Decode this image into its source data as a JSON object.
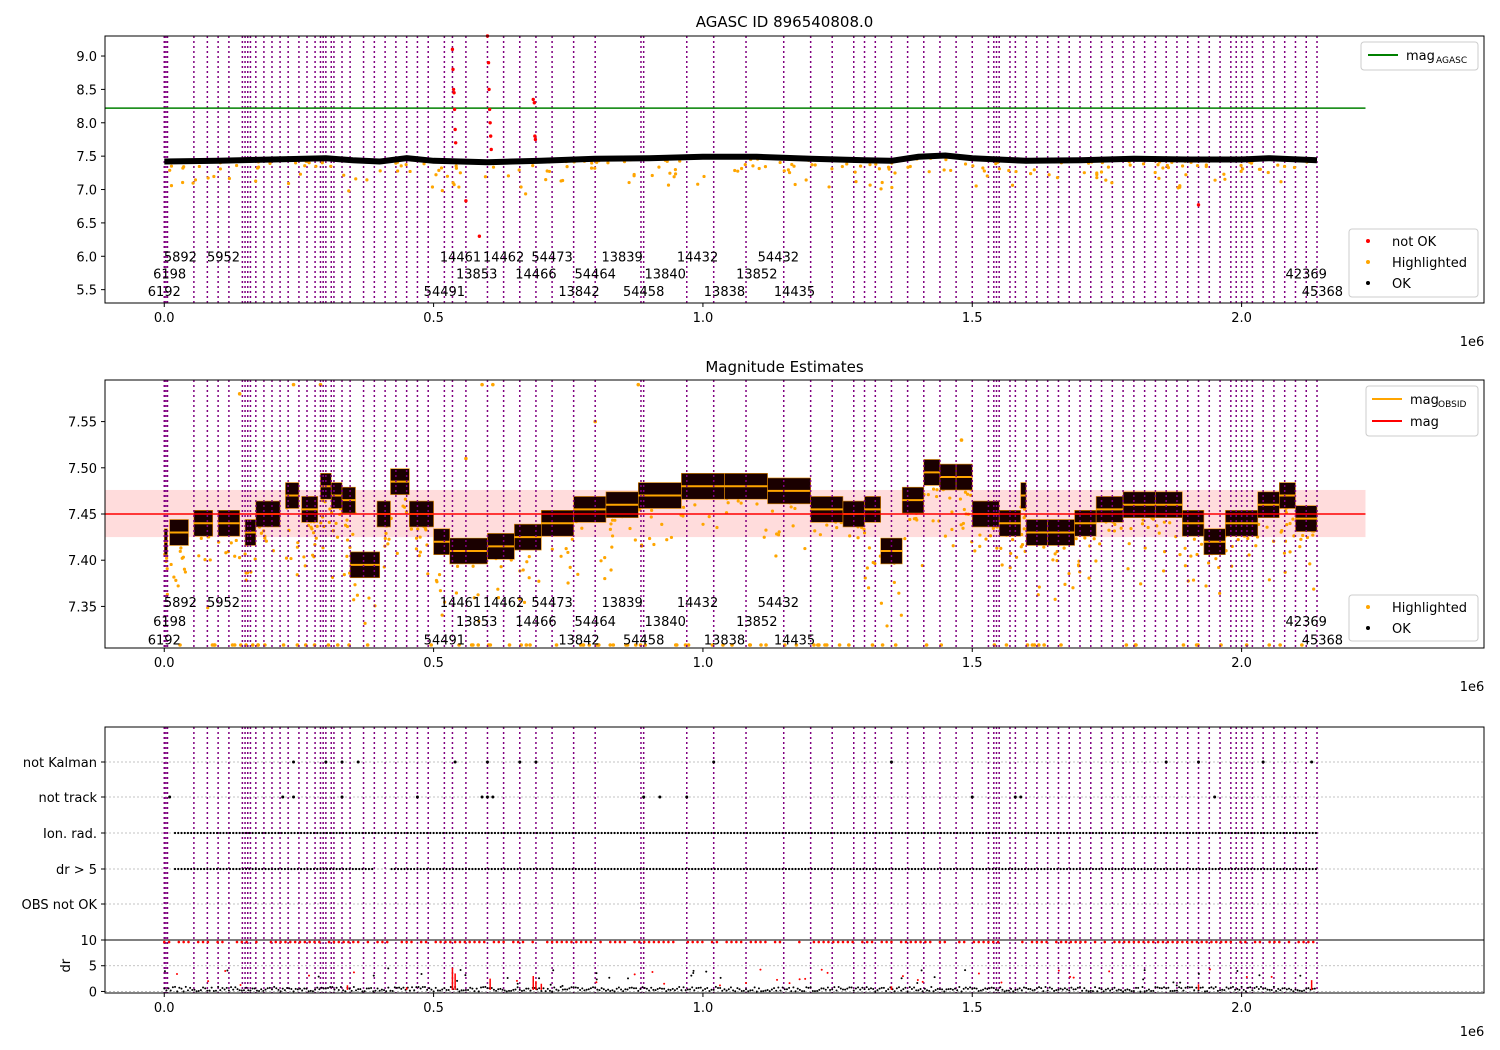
{
  "figure": {
    "offset_label": "1e6"
  },
  "chart_data": [
    {
      "type": "scatter",
      "title": "AGASC ID 896540808.0",
      "xlim": [
        -0.11,
        2.45
      ],
      "ylim": [
        5.3,
        9.3
      ],
      "xticks": [
        0.0,
        0.5,
        1.0,
        1.5,
        2.0
      ],
      "xtick_labels": [
        "0.0",
        "0.5",
        "1.0",
        "1.5",
        "2.0"
      ],
      "yticks": [
        5.5,
        6.0,
        6.5,
        7.0,
        7.5,
        8.0,
        8.5,
        9.0
      ],
      "ytick_labels": [
        "5.5",
        "6.0",
        "6.5",
        "7.0",
        "7.5",
        "8.0",
        "8.5",
        "9.0"
      ],
      "x_offset_label": "1e6",
      "lines": [
        {
          "name": "mag_AGASC",
          "legend_main": "mag",
          "legend_sub": "AGASC",
          "color": "#008000",
          "y": 8.22,
          "x_range": [
            0.0,
            2.23
          ]
        }
      ],
      "series": [
        {
          "name": "not OK",
          "color": "#ff0000"
        },
        {
          "name": "Highlighted",
          "color": "#ffa500"
        },
        {
          "name": "OK",
          "color": "#000000"
        }
      ],
      "ok_baseline": [
        [
          0.0,
          7.42
        ],
        [
          0.1,
          7.43
        ],
        [
          0.2,
          7.45
        ],
        [
          0.3,
          7.47
        ],
        [
          0.35,
          7.44
        ],
        [
          0.4,
          7.42
        ],
        [
          0.45,
          7.47
        ],
        [
          0.5,
          7.43
        ],
        [
          0.6,
          7.41
        ],
        [
          0.7,
          7.43
        ],
        [
          0.8,
          7.46
        ],
        [
          0.9,
          7.47
        ],
        [
          1.0,
          7.49
        ],
        [
          1.1,
          7.49
        ],
        [
          1.2,
          7.46
        ],
        [
          1.3,
          7.44
        ],
        [
          1.35,
          7.43
        ],
        [
          1.4,
          7.49
        ],
        [
          1.45,
          7.51
        ],
        [
          1.5,
          7.47
        ],
        [
          1.6,
          7.43
        ],
        [
          1.7,
          7.44
        ],
        [
          1.8,
          7.46
        ],
        [
          1.9,
          7.45
        ],
        [
          2.0,
          7.45
        ],
        [
          2.05,
          7.47
        ],
        [
          2.14,
          7.44
        ]
      ],
      "not_ok_points": [
        [
          0.535,
          9.1
        ],
        [
          0.536,
          8.8
        ],
        [
          0.537,
          8.5
        ],
        [
          0.538,
          8.45
        ],
        [
          0.539,
          8.2
        ],
        [
          0.54,
          7.9
        ],
        [
          0.541,
          7.7
        ],
        [
          0.6,
          9.3
        ],
        [
          0.602,
          8.9
        ],
        [
          0.603,
          8.5
        ],
        [
          0.604,
          8.2
        ],
        [
          0.605,
          8.0
        ],
        [
          0.606,
          7.8
        ],
        [
          0.607,
          7.6
        ],
        [
          0.685,
          8.35
        ],
        [
          0.687,
          8.3
        ],
        [
          0.688,
          7.8
        ],
        [
          0.689,
          7.75
        ],
        [
          0.585,
          6.3
        ],
        [
          0.56,
          6.83
        ],
        [
          1.92,
          6.77
        ]
      ],
      "legend_entries": [
        "not OK",
        "Highlighted",
        "OK"
      ],
      "text_labels": [
        {
          "t": "5892",
          "x": 0.03,
          "y": 6.0
        },
        {
          "t": "5952",
          "x": 0.11,
          "y": 6.0
        },
        {
          "t": "14461",
          "x": 0.55,
          "y": 6.0
        },
        {
          "t": "14462",
          "x": 0.63,
          "y": 6.0
        },
        {
          "t": "54473",
          "x": 0.72,
          "y": 6.0
        },
        {
          "t": "13839",
          "x": 0.85,
          "y": 6.0
        },
        {
          "t": "14432",
          "x": 0.99,
          "y": 6.0
        },
        {
          "t": "54432",
          "x": 1.14,
          "y": 6.0
        },
        {
          "t": "6198",
          "x": 0.01,
          "y": 5.74
        },
        {
          "t": "13853",
          "x": 0.58,
          "y": 5.74
        },
        {
          "t": "14466",
          "x": 0.69,
          "y": 5.74
        },
        {
          "t": "54464",
          "x": 0.8,
          "y": 5.74
        },
        {
          "t": "13840",
          "x": 0.93,
          "y": 5.74
        },
        {
          "t": "13852",
          "x": 1.1,
          "y": 5.74
        },
        {
          "t": "42369",
          "x": 2.12,
          "y": 5.74
        },
        {
          "t": "6192",
          "x": 0.0,
          "y": 5.48
        },
        {
          "t": "54491",
          "x": 0.52,
          "y": 5.48
        },
        {
          "t": "13842",
          "x": 0.77,
          "y": 5.48
        },
        {
          "t": "54458",
          "x": 0.89,
          "y": 5.48
        },
        {
          "t": "13838",
          "x": 1.04,
          "y": 5.48
        },
        {
          "t": "14435",
          "x": 1.17,
          "y": 5.48
        },
        {
          "t": "45368",
          "x": 2.15,
          "y": 5.48
        }
      ]
    },
    {
      "type": "scatter",
      "title": "Magnitude Estimates",
      "xlim": [
        -0.11,
        2.45
      ],
      "ylim": [
        7.305,
        7.595
      ],
      "xticks": [
        0.0,
        0.5,
        1.0,
        1.5,
        2.0
      ],
      "xtick_labels": [
        "0.0",
        "0.5",
        "1.0",
        "1.5",
        "2.0"
      ],
      "yticks": [
        7.35,
        7.4,
        7.45,
        7.5,
        7.55
      ],
      "ytick_labels": [
        "7.35",
        "7.40",
        "7.45",
        "7.50",
        "7.55"
      ],
      "x_offset_label": "1e6",
      "lines": [
        {
          "name": "mag_OBSID",
          "legend_main": "mag",
          "legend_sub": "OBSID",
          "color": "#ffa500"
        },
        {
          "name": "mag",
          "legend_main": "mag",
          "legend_sub": "",
          "color": "#ff0000",
          "y": 7.45,
          "x_range": [
            -0.11,
            2.23
          ]
        }
      ],
      "band": {
        "y_low": 7.425,
        "y_high": 7.476,
        "x_range": [
          -0.11,
          2.23
        ],
        "color": "#ffc0c0"
      },
      "series": [
        {
          "name": "Highlighted",
          "color": "#ffa500"
        },
        {
          "name": "OK",
          "color": "#000000"
        }
      ],
      "observations": [
        [
          0.0,
          0.006,
          7.42
        ],
        [
          0.01,
          0.045,
          7.43
        ],
        [
          0.055,
          0.09,
          7.44
        ],
        [
          0.1,
          0.14,
          7.44
        ],
        [
          0.15,
          0.17,
          7.43
        ],
        [
          0.17,
          0.215,
          7.45
        ],
        [
          0.225,
          0.25,
          7.47
        ],
        [
          0.255,
          0.285,
          7.455
        ],
        [
          0.29,
          0.31,
          7.48
        ],
        [
          0.31,
          0.33,
          7.47
        ],
        [
          0.33,
          0.355,
          7.465
        ],
        [
          0.345,
          0.4,
          7.395
        ],
        [
          0.395,
          0.42,
          7.45
        ],
        [
          0.42,
          0.455,
          7.485
        ],
        [
          0.455,
          0.5,
          7.45
        ],
        [
          0.5,
          0.53,
          7.42
        ],
        [
          0.53,
          0.6,
          7.41
        ],
        [
          0.6,
          0.65,
          7.415
        ],
        [
          0.65,
          0.7,
          7.425
        ],
        [
          0.7,
          0.76,
          7.44
        ],
        [
          0.76,
          0.82,
          7.455
        ],
        [
          0.82,
          0.88,
          7.46
        ],
        [
          0.88,
          0.96,
          7.47
        ],
        [
          0.96,
          1.04,
          7.48
        ],
        [
          1.04,
          1.12,
          7.48
        ],
        [
          1.12,
          1.2,
          7.475
        ],
        [
          1.2,
          1.26,
          7.455
        ],
        [
          1.26,
          1.3,
          7.45
        ],
        [
          1.3,
          1.33,
          7.455
        ],
        [
          1.33,
          1.37,
          7.41
        ],
        [
          1.37,
          1.41,
          7.465
        ],
        [
          1.41,
          1.44,
          7.495
        ],
        [
          1.44,
          1.47,
          7.49
        ],
        [
          1.47,
          1.5,
          7.49
        ],
        [
          1.5,
          1.55,
          7.45
        ],
        [
          1.55,
          1.59,
          7.44
        ],
        [
          1.59,
          1.6,
          7.47
        ],
        [
          1.6,
          1.64,
          7.43
        ],
        [
          1.64,
          1.69,
          7.43
        ],
        [
          1.69,
          1.73,
          7.44
        ],
        [
          1.73,
          1.78,
          7.455
        ],
        [
          1.78,
          1.84,
          7.46
        ],
        [
          1.84,
          1.89,
          7.46
        ],
        [
          1.89,
          1.93,
          7.44
        ],
        [
          1.93,
          1.97,
          7.42
        ],
        [
          1.97,
          2.03,
          7.44
        ],
        [
          2.03,
          2.07,
          7.46
        ],
        [
          2.07,
          2.1,
          7.47
        ],
        [
          2.1,
          2.14,
          7.445
        ]
      ],
      "highlighted_samples": [
        [
          0.14,
          7.58
        ],
        [
          0.24,
          7.59
        ],
        [
          0.29,
          7.59
        ],
        [
          0.56,
          7.51
        ],
        [
          0.59,
          7.59
        ],
        [
          0.61,
          7.59
        ],
        [
          0.8,
          7.55
        ],
        [
          0.88,
          7.59
        ],
        [
          1.48,
          7.53
        ]
      ],
      "legend_entries": [
        "mag_OBSID",
        "mag",
        "Highlighted",
        "OK"
      ],
      "text_labels": [
        {
          "t": "5892",
          "x": 0.03,
          "y": 7.355
        },
        {
          "t": "5952",
          "x": 0.11,
          "y": 7.355
        },
        {
          "t": "14461",
          "x": 0.55,
          "y": 7.355
        },
        {
          "t": "14462",
          "x": 0.63,
          "y": 7.355
        },
        {
          "t": "54473",
          "x": 0.72,
          "y": 7.355
        },
        {
          "t": "13839",
          "x": 0.85,
          "y": 7.355
        },
        {
          "t": "14432",
          "x": 0.99,
          "y": 7.355
        },
        {
          "t": "54432",
          "x": 1.14,
          "y": 7.355
        },
        {
          "t": "6198",
          "x": 0.01,
          "y": 7.334
        },
        {
          "t": "13853",
          "x": 0.58,
          "y": 7.334
        },
        {
          "t": "14466",
          "x": 0.69,
          "y": 7.334
        },
        {
          "t": "54464",
          "x": 0.8,
          "y": 7.334
        },
        {
          "t": "13840",
          "x": 0.93,
          "y": 7.334
        },
        {
          "t": "13852",
          "x": 1.1,
          "y": 7.334
        },
        {
          "t": "42369",
          "x": 2.12,
          "y": 7.334
        },
        {
          "t": "6192",
          "x": 0.0,
          "y": 7.314
        },
        {
          "t": "54491",
          "x": 0.52,
          "y": 7.314
        },
        {
          "t": "13842",
          "x": 0.77,
          "y": 7.314
        },
        {
          "t": "54458",
          "x": 0.89,
          "y": 7.314
        },
        {
          "t": "13838",
          "x": 1.04,
          "y": 7.314
        },
        {
          "t": "14435",
          "x": 1.17,
          "y": 7.314
        },
        {
          "t": "45368",
          "x": 2.15,
          "y": 7.314
        }
      ]
    },
    {
      "type": "scatter",
      "title": "",
      "xlim": [
        -0.11,
        2.45
      ],
      "ylim": [
        -0.3,
        10.0
      ],
      "xticks": [
        0.0,
        0.5,
        1.0,
        1.5,
        2.0
      ],
      "xtick_labels": [
        "0.0",
        "0.5",
        "1.0",
        "1.5",
        "2.0"
      ],
      "yticks": [
        0,
        5,
        10
      ],
      "ytick_labels": [
        "0",
        "5",
        "10"
      ],
      "ylabel": "dr",
      "x_offset_label": "1e6",
      "threshold": 10,
      "flag_rows": [
        "not Kalman",
        "not track",
        "Ion. rad.",
        "dr > 5",
        "OBS not OK"
      ],
      "flag_points": {
        "not Kalman": [
          0.54,
          0.6,
          0.66,
          0.69,
          0.24,
          0.3,
          0.33,
          0.36,
          1.02,
          1.35,
          1.86,
          1.92,
          2.04,
          2.13
        ],
        "not track": [
          0.01,
          0.22,
          0.24,
          0.33,
          0.47,
          0.59,
          0.6,
          0.61,
          0.89,
          0.92,
          0.97,
          1.5,
          1.58,
          1.59,
          1.95
        ],
        "Ion. rad.": {
          "range": [
            0.02,
            2.14
          ]
        },
        "dr > 5": {
          "range": [
            0.02,
            2.14
          ]
        },
        "OBS not OK": []
      },
      "dr_spikes": [
        [
          0.535,
          4.6
        ],
        [
          0.54,
          3.5
        ],
        [
          0.605,
          2.5
        ],
        [
          0.685,
          3.0
        ],
        [
          0.69,
          2.0
        ],
        [
          0.7,
          1.5
        ],
        [
          0.34,
          1.2
        ],
        [
          1.92,
          1.4
        ],
        [
          2.13,
          2.2
        ],
        [
          0.45,
          0.8
        ],
        [
          1.35,
          1.0
        ]
      ]
    }
  ],
  "obs_lines_x": [
    0.0,
    0.003,
    0.006,
    0.055,
    0.08,
    0.1,
    0.12,
    0.145,
    0.15,
    0.155,
    0.16,
    0.17,
    0.185,
    0.2,
    0.215,
    0.23,
    0.25,
    0.265,
    0.28,
    0.29,
    0.295,
    0.3,
    0.31,
    0.315,
    0.33,
    0.345,
    0.37,
    0.39,
    0.41,
    0.43,
    0.45,
    0.47,
    0.49,
    0.52,
    0.535,
    0.56,
    0.6,
    0.63,
    0.66,
    0.69,
    0.72,
    0.76,
    0.8,
    0.885,
    0.89,
    0.97,
    1.02,
    1.08,
    1.15,
    1.2,
    1.24,
    1.28,
    1.3,
    1.32,
    1.35,
    1.38,
    1.41,
    1.44,
    1.47,
    1.5,
    1.53,
    1.54,
    1.545,
    1.55,
    1.57,
    1.58,
    1.6,
    1.62,
    1.64,
    1.66,
    1.68,
    1.7,
    1.72,
    1.74,
    1.76,
    1.78,
    1.8,
    1.82,
    1.84,
    1.86,
    1.88,
    1.9,
    1.92,
    1.94,
    1.96,
    1.98,
    1.99,
    2.0,
    2.01,
    2.02,
    2.04,
    2.06,
    2.08,
    2.1,
    2.12,
    2.14
  ]
}
